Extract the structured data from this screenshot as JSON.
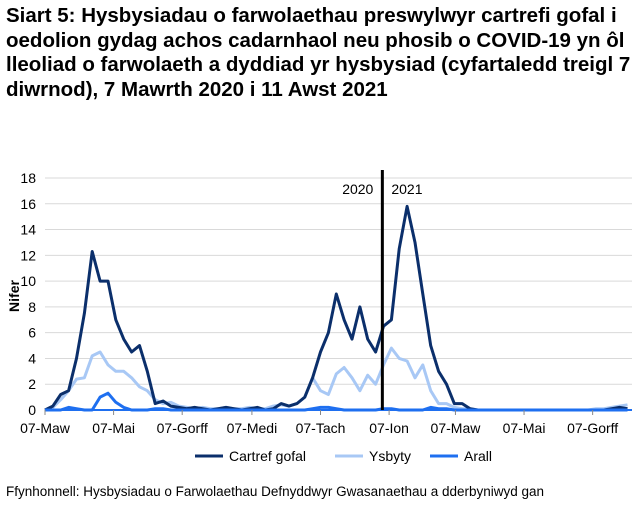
{
  "title": "Siart 5: Hysbysiadau o farwolaethau preswylwyr cartrefi gofal i oedolion gydag achos cadarnhaol neu phosib o COVID-19 yn ôl lleoliad o farwolaeth a dyddiad yr hysbysiad (cyfartaledd treigl 7 diwrnod), 7 Mawrth 2020 i 11 Awst 2021",
  "source": "Ffynhonnell: Hysbysiadau o Farwolaethau Defnyddwyr Gwasanaethau a dderbyniwyd gan",
  "chart_data": {
    "type": "line",
    "ylabel": "Nifer",
    "ylim": [
      0,
      18
    ],
    "yticks": [
      0,
      2,
      4,
      6,
      8,
      10,
      12,
      14,
      16,
      18
    ],
    "x_unit": "days since 7 March 2020 (weekly samples)",
    "xlim": [
      0,
      522
    ],
    "xticks": [
      {
        "day": 0,
        "label": "07-Maw"
      },
      {
        "day": 61,
        "label": "07-Mai"
      },
      {
        "day": 122,
        "label": "07-Gorff"
      },
      {
        "day": 184,
        "label": "07-Medi"
      },
      {
        "day": 245,
        "label": "07-Tach"
      },
      {
        "day": 306,
        "label": "07-Ion"
      },
      {
        "day": 365,
        "label": "07-Maw"
      },
      {
        "day": 426,
        "label": "07-Mai"
      },
      {
        "day": 487,
        "label": "07-Gorff"
      }
    ],
    "year_divider": {
      "day": 300,
      "left_label": "2020",
      "right_label": "2021"
    },
    "grid": true,
    "legend": "bottom",
    "step_days": 7,
    "series": [
      {
        "name": "Cartref gofal",
        "color": "#0b2f6b",
        "values": [
          0,
          0.3,
          1.2,
          1.5,
          4,
          7.5,
          12.3,
          10,
          10,
          7,
          5.5,
          4.5,
          5,
          3,
          0.5,
          0.7,
          0.3,
          0.2,
          0.1,
          0.2,
          0.1,
          0,
          0.1,
          0.2,
          0.1,
          0,
          0.1,
          0.2,
          0,
          0.1,
          0.5,
          0.3,
          0.5,
          1,
          2.5,
          4.5,
          6,
          9,
          7,
          5.5,
          8,
          5.5,
          4.5,
          6.5,
          7,
          12.5,
          15.8,
          13,
          9,
          5,
          3,
          2,
          0.5,
          0.5,
          0.1,
          0,
          0,
          0,
          0,
          0,
          0,
          0,
          0,
          0,
          0,
          0,
          0,
          0,
          0,
          0,
          0,
          0,
          0.1,
          0.2,
          0.1
        ]
      },
      {
        "name": "Ysbyty",
        "color": "#a8c8f5",
        "values": [
          0,
          0.2,
          0.8,
          1.5,
          2.4,
          2.5,
          4.2,
          4.5,
          3.5,
          3,
          3,
          2.5,
          1.8,
          1.5,
          0.8,
          0.5,
          0.6,
          0.3,
          0.2,
          0.1,
          0.2,
          0.1,
          0.1,
          0.2,
          0.1,
          0.1,
          0.2,
          0.1,
          0.1,
          0.3,
          0.4,
          0.3,
          0.5,
          1,
          2.5,
          1.5,
          1.2,
          2.8,
          3.3,
          2.5,
          1.5,
          2.7,
          2,
          3.5,
          4.8,
          4,
          3.8,
          2.5,
          3.5,
          1.5,
          0.5,
          0.5,
          0.2,
          0.1,
          0.1,
          0,
          0,
          0,
          0,
          0,
          0,
          0,
          0,
          0,
          0,
          0,
          0,
          0,
          0,
          0,
          0.1,
          0.1,
          0.2,
          0.3,
          0.4
        ]
      },
      {
        "name": "Arall",
        "color": "#1e6ff0",
        "values": [
          0,
          0,
          0,
          0.2,
          0.1,
          0,
          0,
          1,
          1.3,
          0.6,
          0.2,
          0,
          0,
          0,
          0.1,
          0.1,
          0,
          0,
          0,
          0,
          0,
          0,
          0,
          0,
          0,
          0,
          0,
          0,
          0,
          0,
          0,
          0,
          0,
          0,
          0.1,
          0.2,
          0.2,
          0.1,
          0,
          0,
          0,
          0,
          0,
          0.1,
          0.1,
          0,
          0,
          0,
          0,
          0.2,
          0.1,
          0.1,
          0,
          0,
          0,
          0,
          0,
          0,
          0,
          0,
          0,
          0,
          0,
          0,
          0,
          0,
          0,
          0,
          0,
          0,
          0,
          0,
          0,
          0,
          0
        ]
      }
    ]
  }
}
